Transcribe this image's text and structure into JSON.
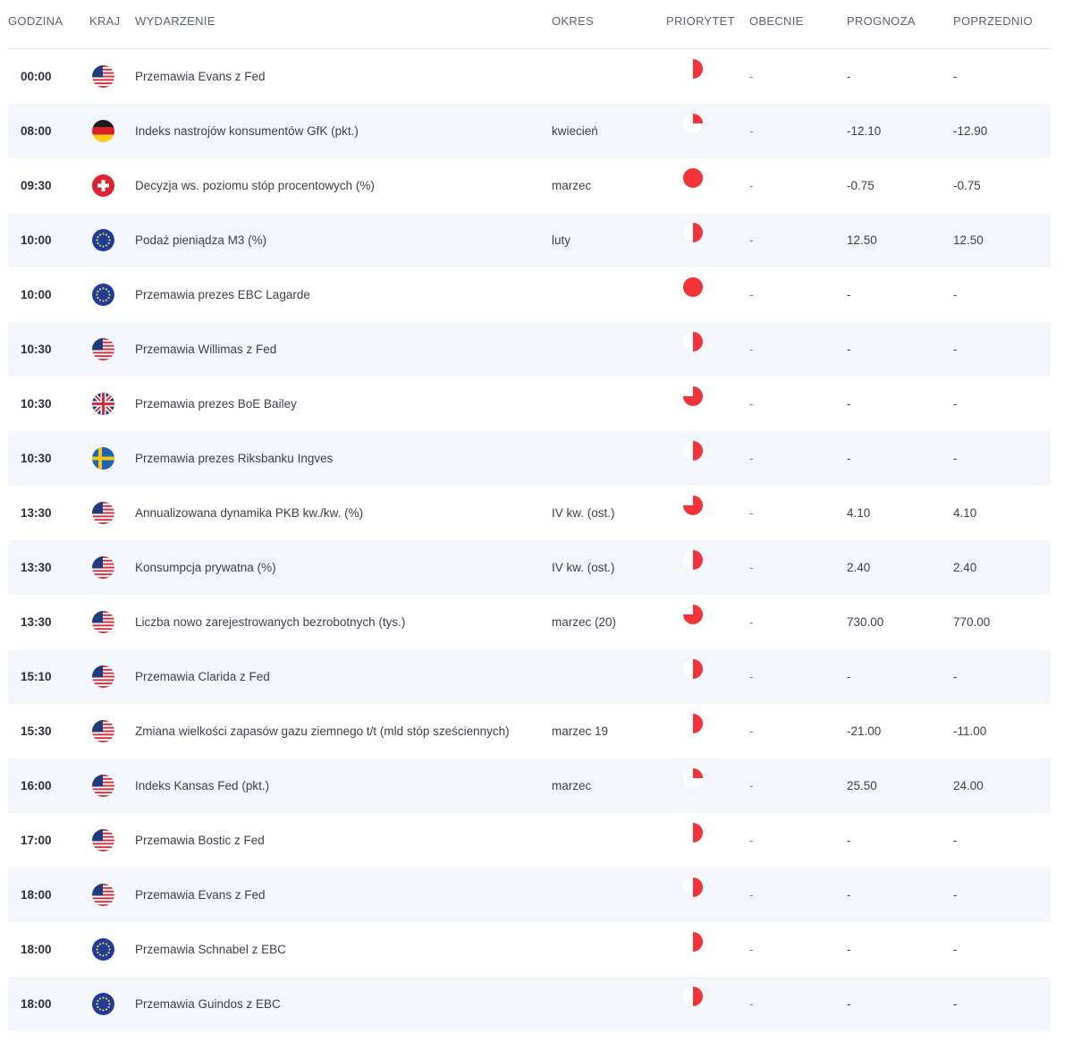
{
  "headers": {
    "time": "GODZINA",
    "country": "KRAJ",
    "event": "WYDARZENIE",
    "period": "OKRES",
    "priority": "PRIORYTET",
    "current": "OBECNIE",
    "forecast": "PROGNOZA",
    "previous": "POPRZEDNIO"
  },
  "colors": {
    "priority": "#f2333a",
    "priority_bg": "#ffffff"
  },
  "rows": [
    {
      "time": "00:00",
      "country": "us-flag-icon",
      "event": "Przemawia Evans z Fed",
      "period": "",
      "priority": 0.5,
      "current": "-",
      "forecast": "-",
      "previous": "-"
    },
    {
      "time": "08:00",
      "country": "de-flag-icon",
      "event": "Indeks nastrojów konsumentów GfK (pkt.)",
      "period": "kwiecień",
      "priority": 0.25,
      "current": "-",
      "forecast": "-12.10",
      "previous": "-12.90"
    },
    {
      "time": "09:30",
      "country": "ch-flag-icon",
      "event": "Decyzja ws. poziomu stóp procentowych (%)",
      "period": "marzec",
      "priority": 1,
      "current": "-",
      "forecast": "-0.75",
      "previous": "-0.75"
    },
    {
      "time": "10:00",
      "country": "eu-flag-icon",
      "event": "Podaż pieniądza M3 (%)",
      "period": "luty",
      "priority": 0.5,
      "current": "-",
      "forecast": "12.50",
      "previous": "12.50"
    },
    {
      "time": "10:00",
      "country": "eu-flag-icon",
      "event": "Przemawia prezes EBC Lagarde",
      "period": "",
      "priority": 1,
      "current": "-",
      "forecast": "-",
      "previous": "-"
    },
    {
      "time": "10:30",
      "country": "us-flag-icon",
      "event": "Przemawia Willimas z Fed",
      "period": "",
      "priority": 0.5,
      "current": "-",
      "forecast": "-",
      "previous": "-"
    },
    {
      "time": "10:30",
      "country": "gb-flag-icon",
      "event": "Przemawia prezes BoE Bailey",
      "period": "",
      "priority": 0.75,
      "current": "-",
      "forecast": "-",
      "previous": "-"
    },
    {
      "time": "10:30",
      "country": "se-flag-icon",
      "event": "Przemawia prezes Riksbanku Ingves",
      "period": "",
      "priority": 0.5,
      "current": "-",
      "forecast": "-",
      "previous": "-"
    },
    {
      "time": "13:30",
      "country": "us-flag-icon",
      "event": "Annualizowana dynamika PKB kw./kw. (%)",
      "period": "IV kw. (ost.)",
      "priority": 0.75,
      "current": "-",
      "forecast": "4.10",
      "previous": "4.10"
    },
    {
      "time": "13:30",
      "country": "us-flag-icon",
      "event": "Konsumpcja prywatna (%)",
      "period": "IV kw. (ost.)",
      "priority": 0.5,
      "current": "-",
      "forecast": "2.40",
      "previous": "2.40"
    },
    {
      "time": "13:30",
      "country": "us-flag-icon",
      "event": "Liczba nowo zarejestrowanych bezrobotnych (tys.)",
      "period": "marzec (20)",
      "priority": 0.75,
      "current": "-",
      "forecast": "730.00",
      "previous": "770.00"
    },
    {
      "time": "15:10",
      "country": "us-flag-icon",
      "event": "Przemawia Clarida z Fed",
      "period": "",
      "priority": 0.5,
      "current": "-",
      "forecast": "-",
      "previous": "-"
    },
    {
      "time": "15:30",
      "country": "us-flag-icon",
      "event": "Zmiana wielkości zapasów gazu ziemnego t/t (mld stóp sześciennych)",
      "period": "marzec 19",
      "priority": 0.5,
      "current": "-",
      "forecast": "-21.00",
      "previous": "-11.00"
    },
    {
      "time": "16:00",
      "country": "us-flag-icon",
      "event": "Indeks Kansas Fed (pkt.)",
      "period": "marzec",
      "priority": 0.25,
      "current": "-",
      "forecast": "25.50",
      "previous": "24.00"
    },
    {
      "time": "17:00",
      "country": "us-flag-icon",
      "event": "Przemawia Bostic z Fed",
      "period": "",
      "priority": 0.5,
      "current": "-",
      "forecast": "-",
      "previous": "-"
    },
    {
      "time": "18:00",
      "country": "us-flag-icon",
      "event": "Przemawia Evans z Fed",
      "period": "",
      "priority": 0.5,
      "current": "-",
      "forecast": "-",
      "previous": "-"
    },
    {
      "time": "18:00",
      "country": "eu-flag-icon",
      "event": "Przemawia Schnabel z EBC",
      "period": "",
      "priority": 0.5,
      "current": "-",
      "forecast": "-",
      "previous": "-"
    },
    {
      "time": "18:00",
      "country": "eu-flag-icon",
      "event": "Przemawia Guindos z EBC",
      "period": "",
      "priority": 0.5,
      "current": "-",
      "forecast": "-",
      "previous": "-"
    }
  ]
}
